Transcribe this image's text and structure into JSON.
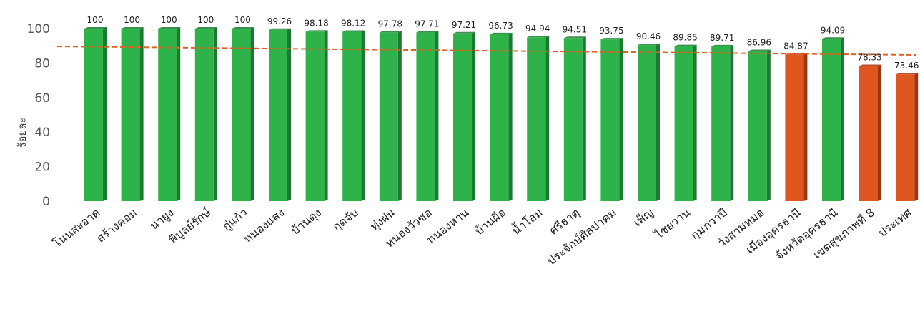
{
  "chart_data": {
    "type": "bar",
    "title": "",
    "xlabel": "",
    "ylabel": "ร้อยละ",
    "ylim": [
      0,
      100
    ],
    "yticks": [
      0,
      20,
      40,
      60,
      80,
      100
    ],
    "grid": false,
    "target_line": 88,
    "categories": [
      "โนนสะอาด",
      "สร้างคอม",
      "นายูง",
      "พิบูลย์รักษ์",
      "กู่แก้ว",
      "หนองแสง",
      "บ้านดุง",
      "กุดจับ",
      "ทุ่งฝน",
      "หนองวัวซอ",
      "หนองหาน",
      "บ้านผือ",
      "น้ำโสม",
      "ศรีธาตุ",
      "ประจักษ์ศิลปาคม",
      "เพ็ญ",
      "ไชยวาน",
      "กุมภวาปี",
      "วังสามหมอ",
      "เมืองอุดรธานี",
      "จังหวัดอุดรธานี",
      "เขตสุขภาพที่ 8",
      "ประเทศ"
    ],
    "values": [
      100,
      100,
      100,
      100,
      100,
      99.26,
      98.18,
      98.12,
      97.78,
      97.71,
      97.21,
      96.73,
      94.94,
      94.51,
      93.75,
      90.46,
      89.85,
      89.71,
      86.96,
      84.87,
      94.09,
      78.33,
      73.46
    ],
    "value_labels": [
      "100",
      "100",
      "100",
      "100",
      "100",
      "99.26",
      "98.18",
      "98.12",
      "97.78",
      "97.71",
      "97.21",
      "96.73",
      "94.94",
      "94.51",
      "93.75",
      "90.46",
      "89.85",
      "89.71",
      "86.96",
      "84.87",
      "94.09",
      "78.33",
      "73.46"
    ],
    "bar_colors": [
      "green",
      "green",
      "green",
      "green",
      "green",
      "green",
      "green",
      "green",
      "green",
      "green",
      "green",
      "green",
      "green",
      "green",
      "green",
      "green",
      "green",
      "green",
      "green",
      "orange",
      "green",
      "orange",
      "orange"
    ],
    "colors": {
      "green": "#2db34a",
      "green_dark": "#1b7a30",
      "orange": "#e0561f",
      "orange_dark": "#9e3510",
      "target_line": "#e06020"
    }
  }
}
